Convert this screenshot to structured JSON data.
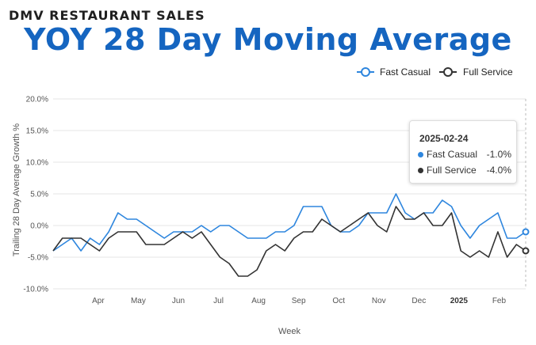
{
  "header": {
    "supertitle": "DMV RESTAURANT SALES",
    "title": "YOY 28 Day Moving Average"
  },
  "tooltip": {
    "date": "2025-02-24",
    "rows": [
      {
        "name": "Fast Casual",
        "value": "-1.0%",
        "color": "#2e86de"
      },
      {
        "name": "Full Service",
        "value": "-4.0%",
        "color": "#333333"
      }
    ]
  },
  "chart_data": {
    "type": "line",
    "title": "YOY 28 Day Moving Average",
    "xlabel": "Week",
    "ylabel": "Trailing 28 Day Average Growth %",
    "ylim": [
      -10,
      20
    ],
    "yticks": [
      20,
      15,
      10,
      5,
      0,
      -5,
      -10
    ],
    "ytick_labels": [
      "20.0%",
      "15.0%",
      "10.0%",
      "5.0%",
      "0.0%",
      "-5.0%",
      "-10.0%"
    ],
    "xticks": [
      {
        "label": "Apr",
        "week": 4,
        "bold": false
      },
      {
        "label": "May",
        "week": 8,
        "bold": false
      },
      {
        "label": "Jun",
        "week": 12,
        "bold": false
      },
      {
        "label": "Jul",
        "week": 16,
        "bold": false
      },
      {
        "label": "Aug",
        "week": 20,
        "bold": false
      },
      {
        "label": "Sep",
        "week": 24,
        "bold": false
      },
      {
        "label": "Oct",
        "week": 28,
        "bold": false
      },
      {
        "label": "Nov",
        "week": 32,
        "bold": false
      },
      {
        "label": "Dec",
        "week": 36,
        "bold": false
      },
      {
        "label": "2025",
        "week": 40,
        "bold": true
      },
      {
        "label": "Feb",
        "week": 44,
        "bold": false
      }
    ],
    "x_range": [
      0,
      47
    ],
    "legend_position": "top-right",
    "series": [
      {
        "name": "Fast Casual",
        "color": "#2e86de",
        "values": [
          -4,
          -3,
          -2,
          -4,
          -2,
          -3,
          -1,
          2,
          1,
          1,
          0,
          -1,
          -2,
          -1,
          -1,
          -1,
          0,
          -1,
          0,
          0,
          -1,
          -2,
          -2,
          -2,
          -1,
          -1,
          0,
          3,
          3,
          3,
          0,
          -1,
          -1,
          0,
          2,
          2,
          2,
          5,
          2,
          1,
          2,
          2,
          4,
          3,
          0,
          -2,
          0,
          1,
          2,
          -2,
          -2,
          -1
        ]
      },
      {
        "name": "Full Service",
        "color": "#333333",
        "values": [
          -4,
          -2,
          -2,
          -2,
          -3,
          -4,
          -2,
          -1,
          -1,
          -1,
          -3,
          -3,
          -3,
          -2,
          -1,
          -2,
          -1,
          -3,
          -5,
          -6,
          -8,
          -8,
          -7,
          -4,
          -3,
          -4,
          -2,
          -1,
          -1,
          1,
          0,
          -1,
          0,
          1,
          2,
          0,
          -1,
          3,
          1,
          1,
          2,
          0,
          0,
          2,
          -4,
          -5,
          -4,
          -5,
          -1,
          -5,
          -3,
          -4
        ]
      }
    ]
  }
}
